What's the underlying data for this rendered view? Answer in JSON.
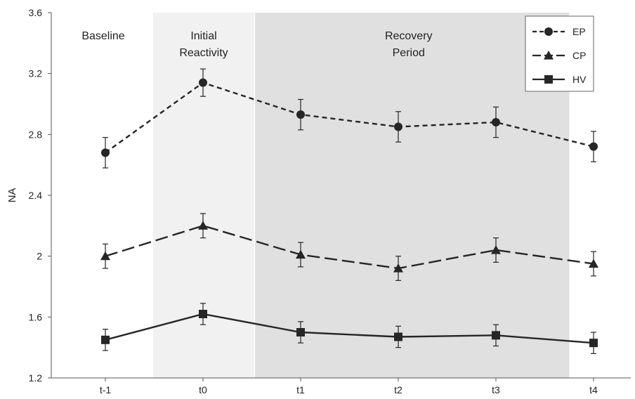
{
  "chart_data": {
    "type": "line",
    "categories": [
      "t-1",
      "t0",
      "t1",
      "t2",
      "t3",
      "t4"
    ],
    "ylabel": "NA",
    "xlabel": "",
    "ylim": [
      1.2,
      3.6
    ],
    "yticks": [
      "1.2",
      "1.6",
      "2",
      "2.4",
      "2.8",
      "3.2",
      "3.6"
    ],
    "grid": false,
    "legend_position": "top-right",
    "regions": [
      {
        "label_lines": [
          "Baseline"
        ],
        "span": [
          "t-1",
          "t-1"
        ],
        "shade": "none"
      },
      {
        "label_lines": [
          "Initial",
          "Reactivity"
        ],
        "span": [
          "t0",
          "t0"
        ],
        "shade": "#f0f1f0"
      },
      {
        "label_lines": [
          "Recovery",
          "Period"
        ],
        "span": [
          "t1",
          "t3"
        ],
        "shade": "#e0e0e1"
      }
    ],
    "series": [
      {
        "name": "EP",
        "marker": "circle",
        "dash": "dashed",
        "values": [
          2.68,
          3.14,
          2.93,
          2.85,
          2.88,
          2.72
        ],
        "errors": [
          0.1,
          0.09,
          0.1,
          0.1,
          0.1,
          0.1
        ]
      },
      {
        "name": "CP",
        "marker": "triangle",
        "dash": "longdash",
        "values": [
          2.0,
          2.2,
          2.01,
          1.92,
          2.04,
          1.95
        ],
        "errors": [
          0.08,
          0.08,
          0.08,
          0.08,
          0.08,
          0.08
        ]
      },
      {
        "name": "HV",
        "marker": "square",
        "dash": "solid",
        "values": [
          1.45,
          1.62,
          1.5,
          1.47,
          1.48,
          1.43
        ],
        "errors": [
          0.07,
          0.07,
          0.07,
          0.07,
          0.07,
          0.07
        ]
      }
    ]
  },
  "colors": {
    "line": "#262626",
    "axis": "#555555"
  }
}
